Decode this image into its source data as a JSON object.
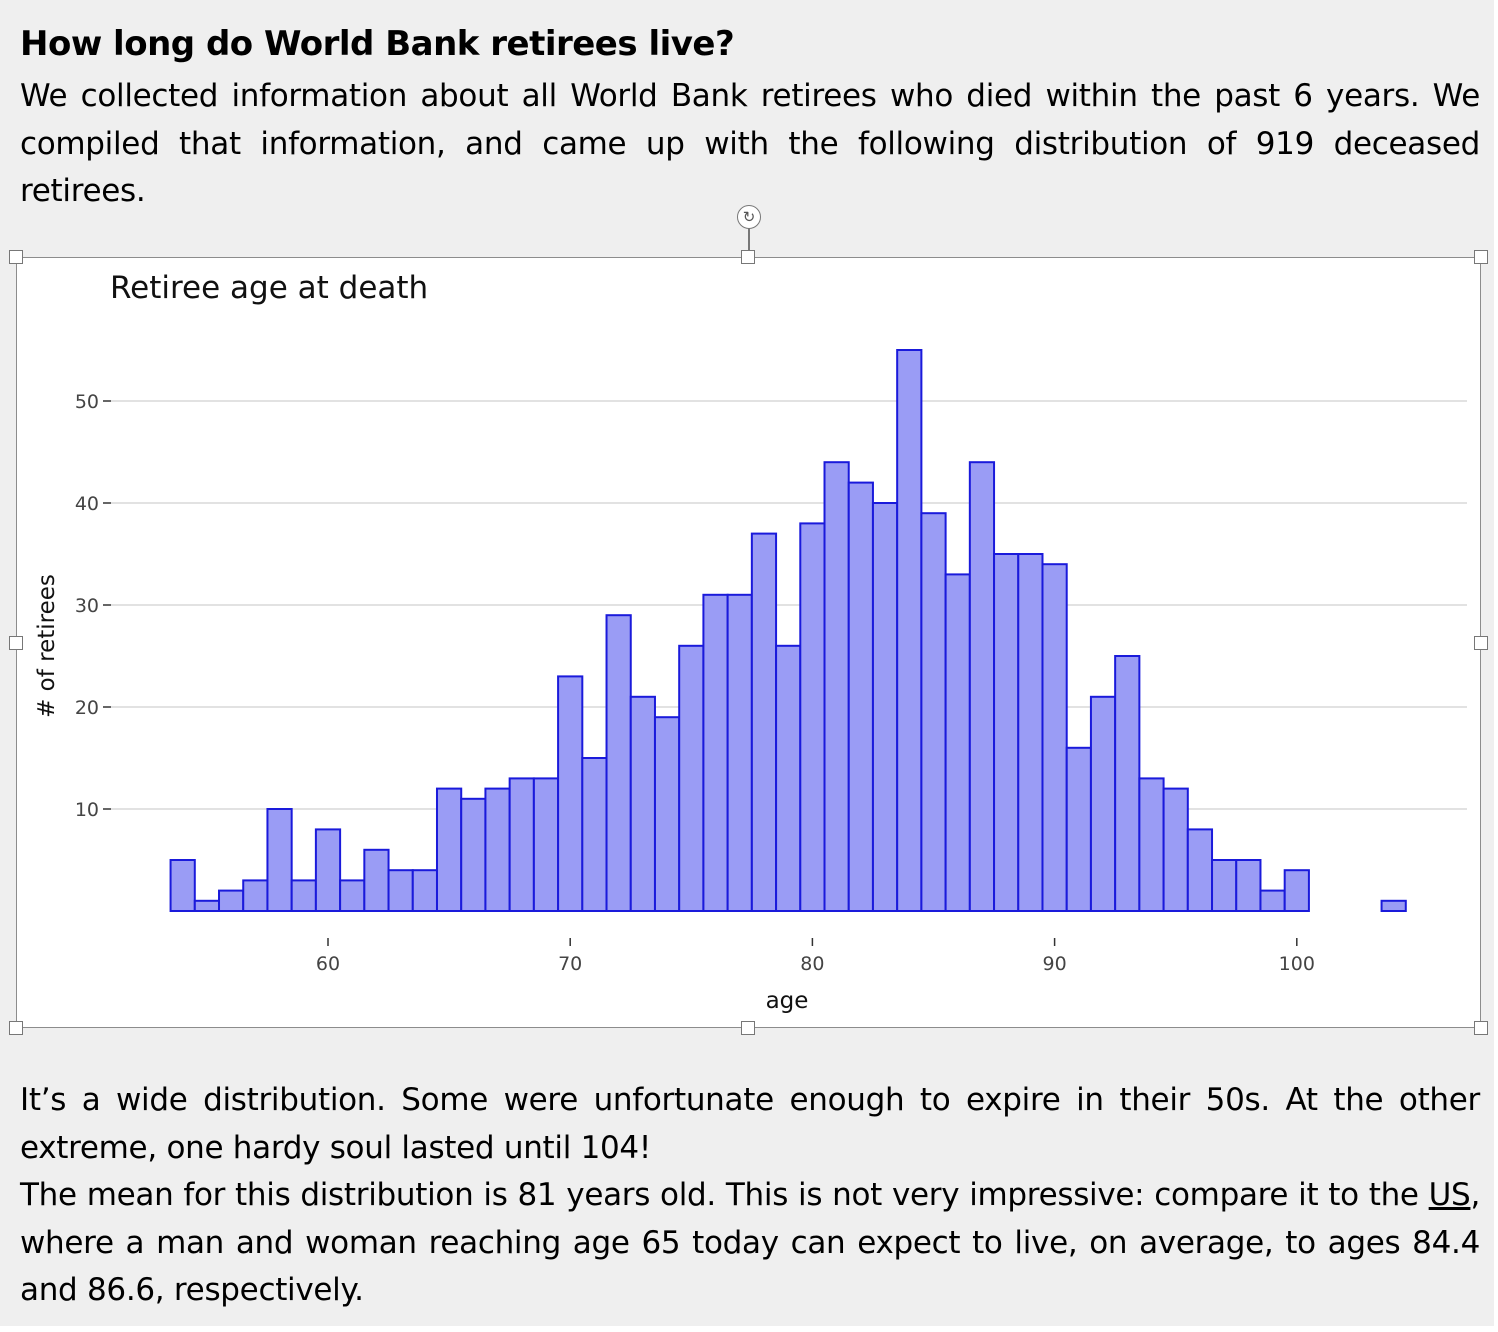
{
  "document": {
    "heading": "How long do World Bank retirees live?",
    "intro": "We collected information about all World Bank retirees who died within the past 6 years. We compiled that information, and came up with the following distribution of 919 deceased retirees.",
    "outro_1": "It’s a wide distribution. Some were unfortunate enough to expire in their 50s. At the other extreme, one hardy soul lasted until 104!",
    "outro_2_before_link": "The mean for this distribution is 81 years old. This is not very impressive: compare it to the ",
    "outro_2_link": "US",
    "outro_2_after_link": ", where a man and woman reaching age 65 today can expect to live, on average, to ages 84.4 and 86.6, respectively."
  },
  "chart_data": {
    "type": "bar",
    "title": "Retiree age at death",
    "xlabel": "age",
    "ylabel": "# of retirees",
    "xlim": [
      53.5,
      105
    ],
    "ylim": [
      0,
      56
    ],
    "x_ticks": [
      60,
      70,
      80,
      90,
      100
    ],
    "y_ticks": [
      10,
      20,
      30,
      40,
      50
    ],
    "grid": "horizontal",
    "bin_width": 1,
    "bin_starts": [
      54,
      55,
      56,
      57,
      58,
      59,
      60,
      61,
      62,
      63,
      64,
      65,
      66,
      67,
      68,
      69,
      70,
      71,
      72,
      73,
      74,
      75,
      76,
      77,
      78,
      79,
      80,
      81,
      82,
      83,
      84,
      85,
      86,
      87,
      88,
      89,
      90,
      91,
      92,
      93,
      94,
      95,
      96,
      97,
      98,
      99,
      100,
      101,
      102,
      103,
      104
    ],
    "values": [
      5,
      1,
      2,
      3,
      10,
      3,
      8,
      3,
      6,
      4,
      4,
      12,
      11,
      12,
      13,
      13,
      23,
      15,
      29,
      21,
      19,
      26,
      31,
      31,
      37,
      26,
      38,
      44,
      42,
      40,
      55,
      39,
      33,
      44,
      35,
      35,
      34,
      16,
      21,
      25,
      13,
      12,
      8,
      5,
      5,
      2,
      4,
      0,
      0,
      0,
      1
    ],
    "bar_fill": "#9a9cf5",
    "bar_stroke": "#1a1adb"
  }
}
